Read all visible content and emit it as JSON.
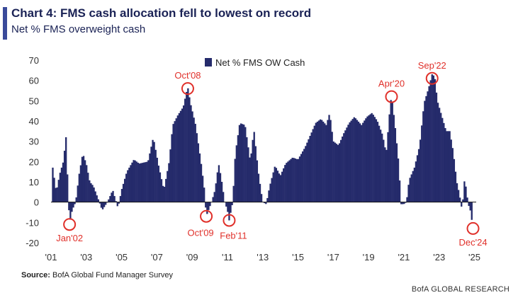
{
  "header": {
    "title": "Chart 4: FMS cash allocation fell to lowest on record",
    "subtitle": "Net % FMS overweight cash"
  },
  "footer": {
    "source_label": "Source:",
    "source_text": "BofA Global Fund Manager Survey",
    "brand": "BofA GLOBAL RESEARCH"
  },
  "colors": {
    "bars": "#252b6b",
    "annotation": "#e0302a",
    "accent": "#3a4a9a"
  },
  "chart_data": {
    "type": "bar",
    "title": "",
    "xlabel": "",
    "ylabel": "",
    "ylim": [
      -20,
      70
    ],
    "yticks": [
      -20,
      -10,
      0,
      10,
      20,
      30,
      40,
      50,
      60,
      70
    ],
    "x_tick_labels": [
      "'01",
      "'03",
      "'05",
      "'07",
      "'09",
      "'11",
      "'13",
      "'15",
      "'17",
      "'19",
      "'21",
      "'23",
      "'25"
    ],
    "x_tick_years": [
      2001,
      2003,
      2005,
      2007,
      2009,
      2011,
      2013,
      2015,
      2017,
      2019,
      2021,
      2023,
      2025
    ],
    "x_range": [
      2001.0,
      2025.1
    ],
    "legend": {
      "label": "Net % FMS OW Cash",
      "position": "top-center"
    },
    "grid": false,
    "series": [
      {
        "name": "Net % FMS OW Cash",
        "x_start": 2001.1,
        "x_step_months": 1,
        "keypoints": [
          [
            2001.1,
            17
          ],
          [
            2001.3,
            5
          ],
          [
            2001.5,
            14
          ],
          [
            2001.7,
            20
          ],
          [
            2001.85,
            32
          ],
          [
            2001.95,
            10
          ],
          [
            2002.05,
            -11
          ],
          [
            2002.2,
            -4
          ],
          [
            2002.4,
            0
          ],
          [
            2002.6,
            14
          ],
          [
            2002.8,
            24
          ],
          [
            2003.0,
            19
          ],
          [
            2003.2,
            10
          ],
          [
            2003.4,
            8
          ],
          [
            2003.7,
            1
          ],
          [
            2003.9,
            -4
          ],
          [
            2004.2,
            0
          ],
          [
            2004.5,
            6
          ],
          [
            2004.8,
            -3
          ],
          [
            2005.0,
            6
          ],
          [
            2005.3,
            15
          ],
          [
            2005.7,
            21
          ],
          [
            2006.0,
            19
          ],
          [
            2006.5,
            20
          ],
          [
            2006.8,
            32
          ],
          [
            2007.1,
            18
          ],
          [
            2007.4,
            6
          ],
          [
            2007.7,
            20
          ],
          [
            2007.9,
            38
          ],
          [
            2008.2,
            43
          ],
          [
            2008.5,
            47
          ],
          [
            2008.75,
            57
          ],
          [
            2008.9,
            49
          ],
          [
            2009.2,
            38
          ],
          [
            2009.5,
            20
          ],
          [
            2009.7,
            6
          ],
          [
            2009.8,
            -7
          ],
          [
            2010.1,
            0
          ],
          [
            2010.3,
            6
          ],
          [
            2010.5,
            19
          ],
          [
            2010.65,
            12
          ],
          [
            2010.85,
            0
          ],
          [
            2011.0,
            -4
          ],
          [
            2011.1,
            -9
          ],
          [
            2011.3,
            0
          ],
          [
            2011.45,
            24
          ],
          [
            2011.7,
            39
          ],
          [
            2012.0,
            38
          ],
          [
            2012.3,
            20
          ],
          [
            2012.5,
            36
          ],
          [
            2012.75,
            15
          ],
          [
            2013.0,
            0
          ],
          [
            2013.2,
            -1
          ],
          [
            2013.4,
            8
          ],
          [
            2013.7,
            18
          ],
          [
            2014.0,
            13
          ],
          [
            2014.3,
            19
          ],
          [
            2014.7,
            22
          ],
          [
            2015.0,
            21
          ],
          [
            2015.4,
            27
          ],
          [
            2015.7,
            33
          ],
          [
            2016.0,
            39
          ],
          [
            2016.3,
            41
          ],
          [
            2016.6,
            38
          ],
          [
            2016.8,
            44
          ],
          [
            2017.0,
            30
          ],
          [
            2017.3,
            28
          ],
          [
            2017.6,
            34
          ],
          [
            2017.9,
            39
          ],
          [
            2018.2,
            42
          ],
          [
            2018.6,
            38
          ],
          [
            2018.9,
            42
          ],
          [
            2019.2,
            44
          ],
          [
            2019.5,
            40
          ],
          [
            2019.8,
            33
          ],
          [
            2020.0,
            24
          ],
          [
            2020.2,
            45
          ],
          [
            2020.3,
            53
          ],
          [
            2020.5,
            38
          ],
          [
            2020.7,
            20
          ],
          [
            2020.85,
            -1
          ],
          [
            2021.0,
            -1
          ],
          [
            2021.15,
            0
          ],
          [
            2021.3,
            11
          ],
          [
            2021.6,
            17
          ],
          [
            2021.9,
            28
          ],
          [
            2022.15,
            49
          ],
          [
            2022.4,
            56
          ],
          [
            2022.6,
            63
          ],
          [
            2022.75,
            62
          ],
          [
            2022.9,
            50
          ],
          [
            2023.1,
            44
          ],
          [
            2023.4,
            35
          ],
          [
            2023.6,
            35
          ],
          [
            2023.8,
            25
          ],
          [
            2024.0,
            10
          ],
          [
            2024.15,
            4
          ],
          [
            2024.3,
            -4
          ],
          [
            2024.45,
            12
          ],
          [
            2024.65,
            -1
          ],
          [
            2024.8,
            -5
          ],
          [
            2024.92,
            -14
          ]
        ]
      }
    ],
    "annotations": [
      {
        "label": "Jan'02",
        "x": 2002.05,
        "y": -11,
        "label_pos": "below"
      },
      {
        "label": "Oct'08",
        "x": 2008.75,
        "y": 56,
        "label_pos": "above"
      },
      {
        "label": "Oct'09",
        "x": 2009.8,
        "y": -7,
        "label_pos": "below-left"
      },
      {
        "label": "Feb'11",
        "x": 2011.1,
        "y": -9,
        "label_pos": "below-right"
      },
      {
        "label": "Apr'20",
        "x": 2020.3,
        "y": 52,
        "label_pos": "above"
      },
      {
        "label": "Sep'22",
        "x": 2022.6,
        "y": 61,
        "label_pos": "above"
      },
      {
        "label": "Dec'24",
        "x": 2024.92,
        "y": -13,
        "label_pos": "below"
      }
    ]
  }
}
